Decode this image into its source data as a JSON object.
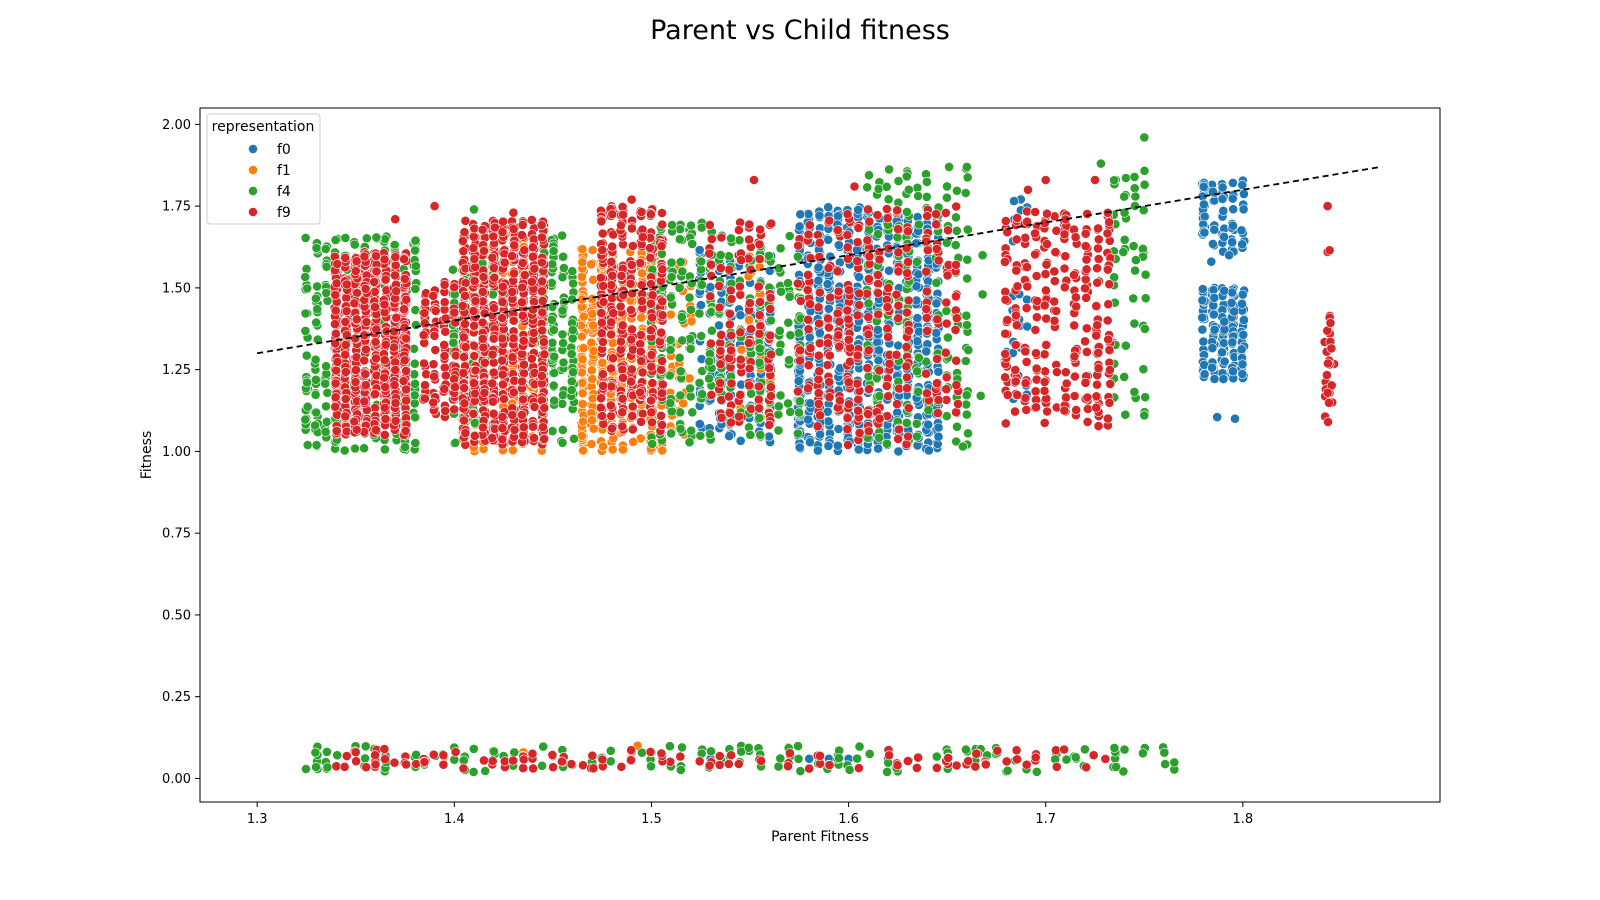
{
  "chart_data": {
    "type": "scatter",
    "title": "Parent vs Child fitness",
    "xlabel": "Parent Fitness",
    "ylabel": "Fitness",
    "xlim": [
      1.271,
      1.9
    ],
    "ylim": [
      -0.072,
      2.05
    ],
    "x_ticks": [
      "1.3",
      "1.4",
      "1.5",
      "1.6",
      "1.7",
      "1.8"
    ],
    "y_ticks": [
      "0.00",
      "0.25",
      "0.50",
      "0.75",
      "1.00",
      "1.25",
      "1.50",
      "1.75",
      "2.00"
    ],
    "grid": false,
    "legend": {
      "title": "representation",
      "placement": "top-left"
    },
    "trend_line": {
      "style": "dashed",
      "color": "#000000",
      "x": [
        1.3,
        1.87
      ],
      "y": [
        1.3,
        1.87
      ]
    },
    "series": [
      {
        "name": "f0",
        "color": "#1f77b4",
        "clusters": [
          {
            "x": [
              1.525,
              1.56
            ],
            "y": [
              1.02,
              1.62
            ],
            "n": 150
          },
          {
            "x": [
              1.575,
              1.61
            ],
            "y": [
              1.0,
              1.75
            ],
            "n": 400
          },
          {
            "x": [
              1.615,
              1.645
            ],
            "y": [
              1.0,
              1.72
            ],
            "n": 300
          },
          {
            "x": [
              1.68,
              1.69
            ],
            "y": [
              1.15,
              1.79
            ],
            "n": 25
          },
          {
            "x": [
              1.78,
              1.8
            ],
            "y": [
              1.22,
              1.5
            ],
            "n": 170
          },
          {
            "x": [
              1.78,
              1.8
            ],
            "y": [
              1.6,
              1.83
            ],
            "n": 70
          }
        ],
        "points": [
          {
            "x": 1.787,
            "y": 1.105
          },
          {
            "x": 1.796,
            "y": 1.1
          },
          {
            "x": 1.793,
            "y": 1.6
          },
          {
            "x": 1.784,
            "y": 1.58
          },
          {
            "x": 1.795,
            "y": 1.69
          },
          {
            "x": 1.54,
            "y": 1.08
          },
          {
            "x": 1.59,
            "y": 0.06
          },
          {
            "x": 1.6,
            "y": 0.06
          },
          {
            "x": 1.58,
            "y": 0.06
          },
          {
            "x": 1.62,
            "y": 0.06
          },
          {
            "x": 1.53,
            "y": 0.06
          }
        ]
      },
      {
        "name": "f1",
        "color": "#ff7f0e",
        "clusters": [
          {
            "x": [
              1.405,
              1.445
            ],
            "y": [
              1.0,
              1.68
            ],
            "n": 250
          },
          {
            "x": [
              1.465,
              1.505
            ],
            "y": [
              1.0,
              1.62
            ],
            "n": 450
          },
          {
            "x": [
              1.51,
              1.52
            ],
            "y": [
              1.05,
              1.58
            ],
            "n": 40
          },
          {
            "x": [
              1.545,
              1.56
            ],
            "y": [
              1.1,
              1.6
            ],
            "n": 30
          }
        ],
        "points": [
          {
            "x": 1.493,
            "y": 0.1
          },
          {
            "x": 1.435,
            "y": 0.08
          },
          {
            "x": 1.49,
            "y": 0.08
          }
        ]
      },
      {
        "name": "f4",
        "color": "#2ca02c",
        "clusters": [
          {
            "x": [
              1.325,
              1.38
            ],
            "y": [
              1.0,
              1.66
            ],
            "n": 320
          },
          {
            "x": [
              1.4,
              1.42
            ],
            "y": [
              1.02,
              1.6
            ],
            "n": 120
          },
          {
            "x": [
              1.445,
              1.46
            ],
            "y": [
              1.02,
              1.66
            ],
            "n": 140
          },
          {
            "x": [
              1.5,
              1.53
            ],
            "y": [
              1.02,
              1.7
            ],
            "n": 160
          },
          {
            "x": [
              1.535,
              1.575
            ],
            "y": [
              1.04,
              1.66
            ],
            "n": 140
          },
          {
            "x": [
              1.61,
              1.66
            ],
            "y": [
              1.02,
              1.87
            ],
            "n": 180
          },
          {
            "x": [
              1.735,
              1.75
            ],
            "y": [
              1.1,
              1.86
            ],
            "n": 50
          },
          {
            "x": [
              1.325,
              1.77
            ],
            "y": [
              0.02,
              0.1
            ],
            "n": 160
          }
        ],
        "points": [
          {
            "x": 1.75,
            "y": 1.96
          },
          {
            "x": 1.728,
            "y": 1.88
          },
          {
            "x": 1.651,
            "y": 1.87
          },
          {
            "x": 1.66,
            "y": 1.87
          },
          {
            "x": 1.41,
            "y": 1.74
          },
          {
            "x": 1.42,
            "y": 1.7
          },
          {
            "x": 1.667,
            "y": 0.09
          },
          {
            "x": 1.658,
            "y": 1.015
          },
          {
            "x": 1.75,
            "y": 1.11
          },
          {
            "x": 1.667,
            "y": 1.17
          },
          {
            "x": 1.668,
            "y": 1.48
          },
          {
            "x": 1.668,
            "y": 1.6
          }
        ]
      },
      {
        "name": "f9",
        "color": "#d62728",
        "clusters": [
          {
            "x": [
              1.34,
              1.375
            ],
            "y": [
              1.05,
              1.61
            ],
            "n": 700
          },
          {
            "x": [
              1.385,
              1.4
            ],
            "y": [
              1.1,
              1.52
            ],
            "n": 100
          },
          {
            "x": [
              1.405,
              1.445
            ],
            "y": [
              1.02,
              1.71
            ],
            "n": 650
          },
          {
            "x": [
              1.475,
              1.505
            ],
            "y": [
              1.05,
              1.75
            ],
            "n": 350
          },
          {
            "x": [
              1.53,
              1.56
            ],
            "y": [
              1.08,
              1.7
            ],
            "n": 120
          },
          {
            "x": [
              1.575,
              1.6
            ],
            "y": [
              1.05,
              1.72
            ],
            "n": 100
          },
          {
            "x": [
              1.6,
              1.63
            ],
            "y": [
              1.02,
              1.75
            ],
            "n": 140
          },
          {
            "x": [
              1.64,
              1.655
            ],
            "y": [
              1.1,
              1.75
            ],
            "n": 60
          },
          {
            "x": [
              1.68,
              1.71
            ],
            "y": [
              1.08,
              1.74
            ],
            "n": 160
          },
          {
            "x": [
              1.715,
              1.732
            ],
            "y": [
              1.06,
              1.74
            ],
            "n": 110
          },
          {
            "x": [
              1.842,
              1.846
            ],
            "y": [
              1.08,
              1.42
            ],
            "n": 25
          },
          {
            "x": [
              1.34,
              1.73
            ],
            "y": [
              0.03,
              0.09
            ],
            "n": 120
          }
        ],
        "points": [
          {
            "x": 1.552,
            "y": 1.83
          },
          {
            "x": 1.603,
            "y": 1.81
          },
          {
            "x": 1.7,
            "y": 1.83
          },
          {
            "x": 1.691,
            "y": 1.8
          },
          {
            "x": 1.725,
            "y": 1.83
          },
          {
            "x": 1.843,
            "y": 1.75
          },
          {
            "x": 1.843,
            "y": 1.61
          },
          {
            "x": 1.844,
            "y": 1.615
          },
          {
            "x": 1.49,
            "y": 1.77
          },
          {
            "x": 1.39,
            "y": 1.75
          },
          {
            "x": 1.37,
            "y": 1.71
          },
          {
            "x": 1.43,
            "y": 1.73
          }
        ]
      }
    ]
  }
}
